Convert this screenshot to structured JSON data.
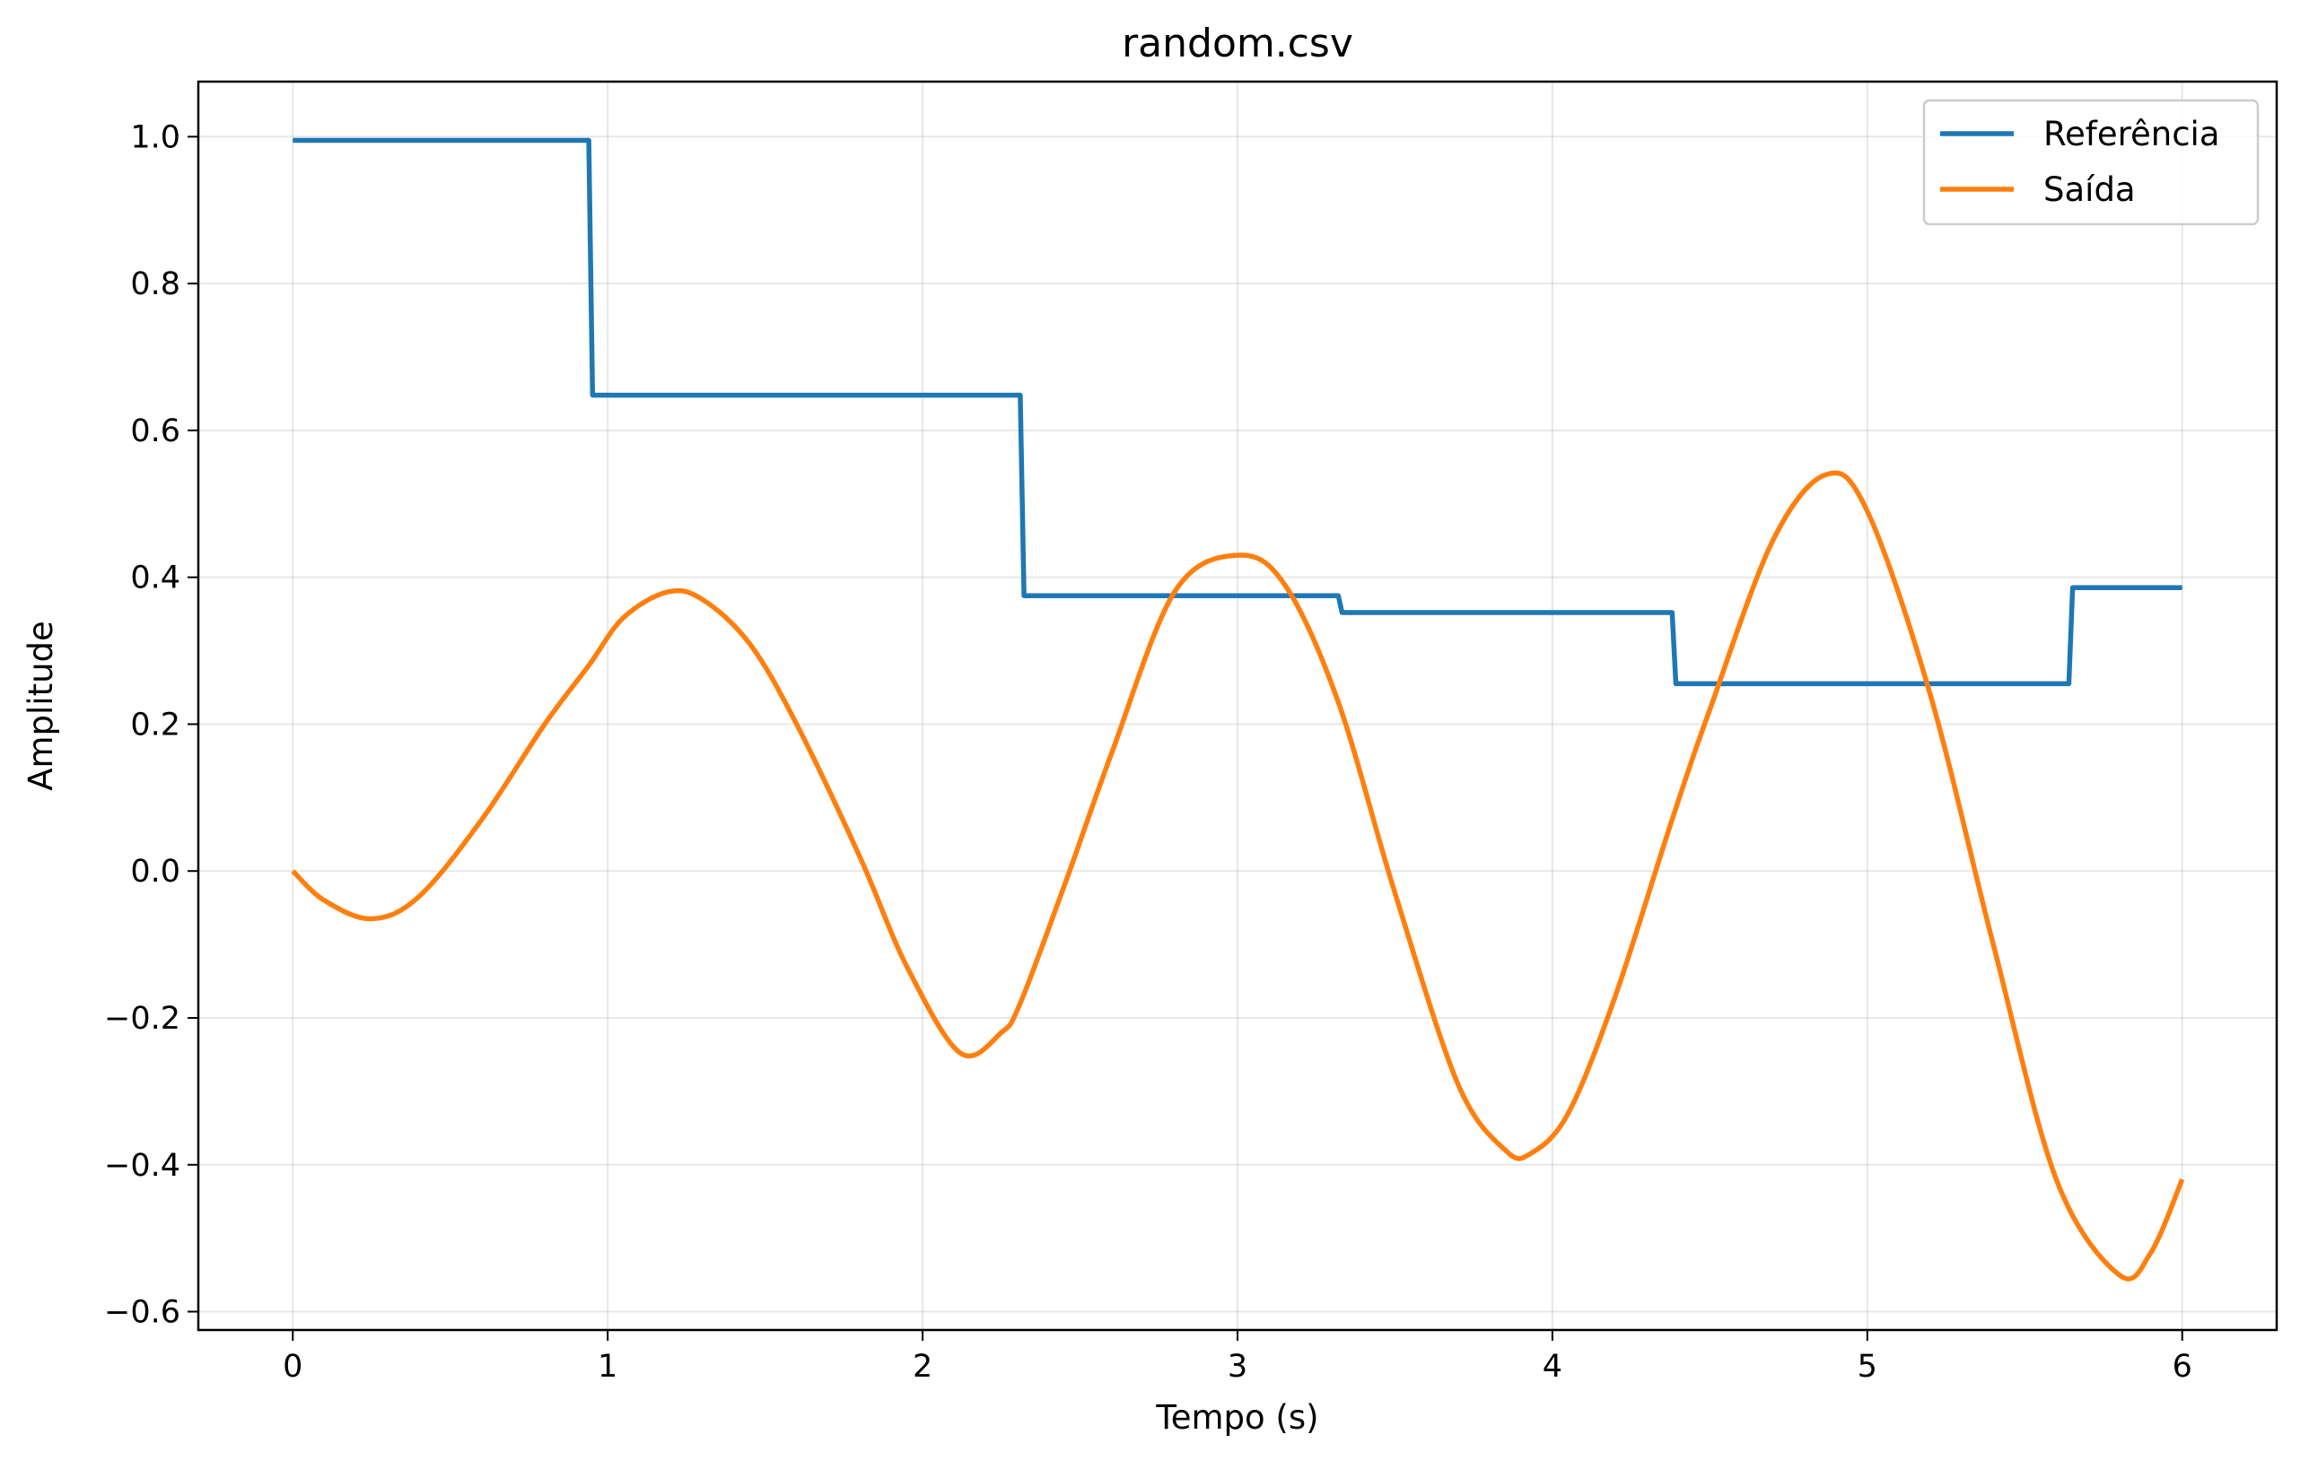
{
  "chart_data": {
    "type": "line",
    "title": "random.csv",
    "xlabel": "Tempo (s)",
    "ylabel": "Amplitude",
    "xlim": [
      -0.3,
      6.3
    ],
    "ylim": [
      -0.625,
      1.075
    ],
    "xticks": [
      0,
      1,
      2,
      3,
      4,
      5,
      6
    ],
    "xtick_labels": [
      "0",
      "1",
      "2",
      "3",
      "4",
      "5",
      "6"
    ],
    "yticks": [
      -0.6,
      -0.4,
      -0.2,
      0.0,
      0.2,
      0.4,
      0.6,
      0.8,
      1.0
    ],
    "ytick_labels": [
      "−0.6",
      "−0.4",
      "−0.2",
      "0.0",
      "0.2",
      "0.4",
      "0.6",
      "0.8",
      "1.0"
    ],
    "grid": true,
    "legend_position": "top-right",
    "series": [
      {
        "name": "Referência",
        "color": "#1f77b4",
        "step": true,
        "x": [
          0,
          0.94,
          2.31,
          3.32,
          4.38,
          5.64,
          6.0
        ],
        "y": [
          0.995,
          0.648,
          0.375,
          0.352,
          0.255,
          0.386,
          0.386
        ]
      },
      {
        "name": "Saída",
        "color": "#ff7f0e",
        "step": false,
        "x": [
          0,
          0.1,
          0.25,
          0.4,
          0.6,
          0.8,
          0.94,
          1.05,
          1.19,
          1.3,
          1.45,
          1.6,
          1.8,
          1.95,
          2.12,
          2.25,
          2.31,
          2.45,
          2.6,
          2.8,
          3.0,
          3.15,
          3.32,
          3.5,
          3.7,
          3.85,
          3.93,
          4.05,
          4.2,
          4.38,
          4.5,
          4.7,
          4.87,
          5.0,
          5.2,
          5.4,
          5.6,
          5.8,
          5.9,
          6.0
        ],
        "y": [
          0.0,
          -0.04,
          -0.065,
          -0.035,
          0.07,
          0.2,
          0.28,
          0.345,
          0.38,
          0.37,
          0.31,
          0.2,
          0.02,
          -0.13,
          -0.248,
          -0.22,
          -0.18,
          -0.02,
          0.16,
          0.38,
          0.43,
          0.39,
          0.23,
          -0.03,
          -0.29,
          -0.38,
          -0.385,
          -0.33,
          -0.17,
          0.07,
          0.22,
          0.45,
          0.54,
          0.49,
          0.24,
          -0.1,
          -0.42,
          -0.55,
          -0.52,
          -0.42
        ]
      }
    ]
  }
}
